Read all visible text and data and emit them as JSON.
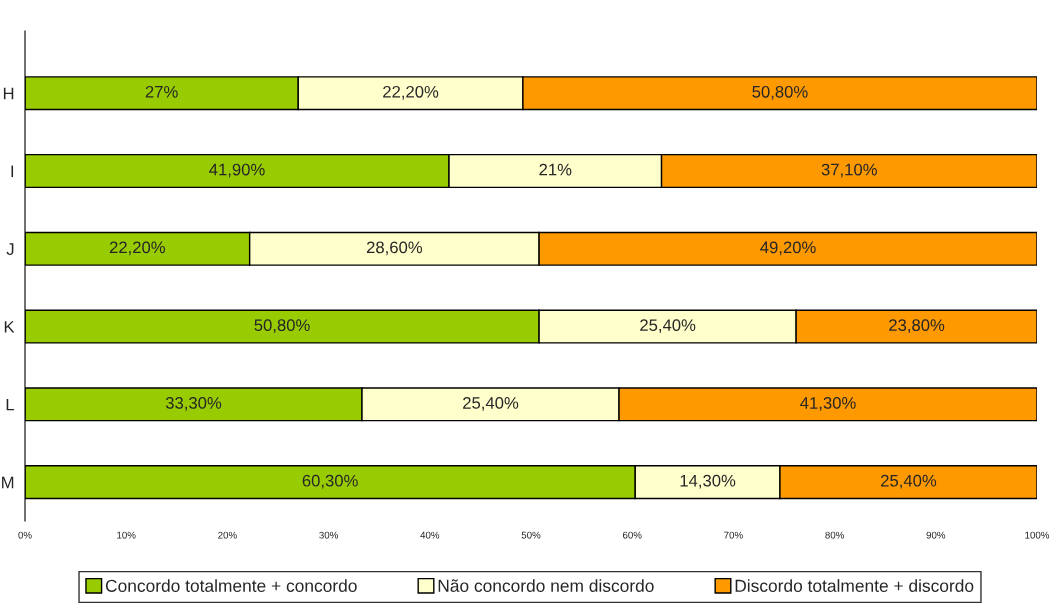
{
  "chart_data": {
    "type": "bar",
    "orientation": "horizontal",
    "stacked": true,
    "categories": [
      "H",
      "I",
      "J",
      "K",
      "L",
      "M"
    ],
    "series": [
      {
        "name": "Concordo totalmente + concordo",
        "color": "#99cc00",
        "values": [
          27,
          41.9,
          22.2,
          50.8,
          33.3,
          60.3
        ],
        "value_labels": [
          "27%",
          "41,90%",
          "22,20%",
          "50,80%",
          "33,30%",
          "60,30%"
        ]
      },
      {
        "name": "Não concordo nem discordo",
        "color": "#ffffcc",
        "values": [
          22.2,
          21,
          28.6,
          25.4,
          25.4,
          14.3
        ],
        "value_labels": [
          "22,20%",
          "21%",
          "28,60%",
          "25,40%",
          "25,40%",
          "14,30%"
        ]
      },
      {
        "name": "Discordo totalmente + discordo",
        "color": "#ff9900",
        "values": [
          50.8,
          37.1,
          49.2,
          23.8,
          41.3,
          25.4
        ],
        "value_labels": [
          "50,80%",
          "37,10%",
          "49,20%",
          "23,80%",
          "41,30%",
          "25,40%"
        ]
      }
    ],
    "xlim": [
      0,
      100
    ],
    "xticks": [
      {
        "value": 0,
        "label": "0%"
      },
      {
        "value": 10,
        "label": "10%"
      },
      {
        "value": 20,
        "label": "20%"
      },
      {
        "value": 30,
        "label": "30%"
      },
      {
        "value": 40,
        "label": "40%"
      },
      {
        "value": 50,
        "label": "50%"
      },
      {
        "value": 60,
        "label": "60%"
      },
      {
        "value": 70,
        "label": "70%"
      },
      {
        "value": 80,
        "label": "80%"
      },
      {
        "value": 90,
        "label": "90%"
      },
      {
        "value": 100,
        "label": "100%"
      }
    ],
    "grid": false,
    "legend": "bottom"
  }
}
